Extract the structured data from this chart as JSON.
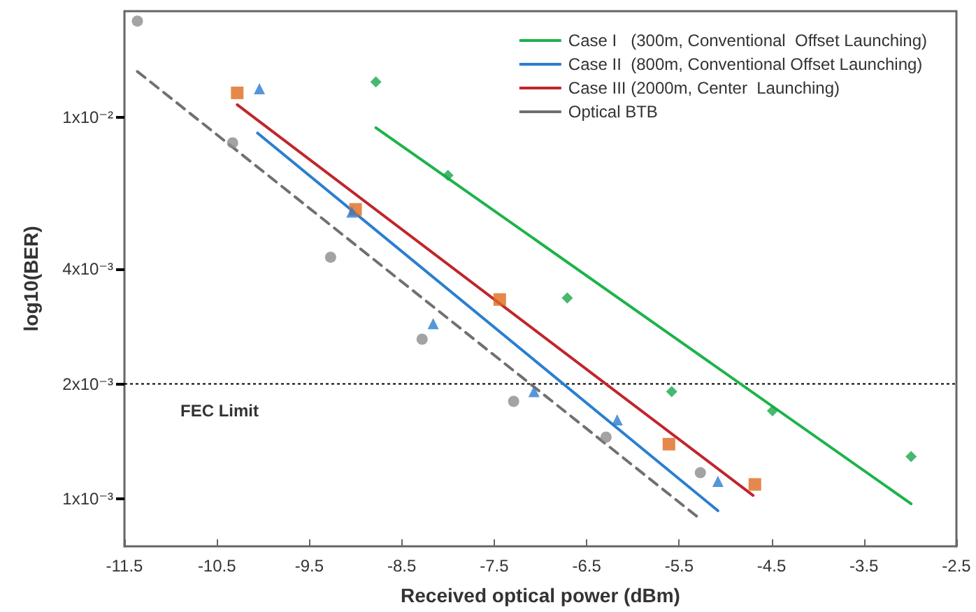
{
  "chart_data": {
    "type": "scatter",
    "xlabel": "Received optical power (dBm)",
    "ylabel": "log10(BER)",
    "xlim": [
      -11.5,
      -2.5
    ],
    "xticks": [
      -11.5,
      -10.5,
      -9.5,
      -8.5,
      -7.5,
      -6.5,
      -5.5,
      -4.5,
      -3.5,
      -2.5
    ],
    "ylim": [
      0.00075,
      0.019
    ],
    "yticks": [
      {
        "value": 0.001,
        "label": "1x10⁻³"
      },
      {
        "value": 0.002,
        "label": "2x10⁻³"
      },
      {
        "value": 0.004,
        "label": "4x10⁻³"
      },
      {
        "value": 0.01,
        "label": "1x10⁻²"
      }
    ],
    "log": "y",
    "grid": false,
    "legend": "top right",
    "ref_lines": [
      {
        "axis": "y",
        "value": 0.002,
        "label": "FEC Limit",
        "color": "#000000",
        "line_style": "dotted"
      }
    ],
    "series": [
      {
        "type": "line",
        "name": "Case I   (300m, Conventional  Offset Launching)",
        "color": "#1db34a",
        "x": [
          -8.78,
          -2.99
        ],
        "values": [
          0.0094,
          0.00097
        ],
        "marker": "none",
        "line_style": "solid"
      },
      {
        "type": "line",
        "name": "Case II  (800m, Conventional Offset Launching)",
        "color": "#2a7fd0",
        "x": [
          -10.06,
          -5.08
        ],
        "values": [
          0.0091,
          0.00093
        ],
        "marker": "none",
        "line_style": "solid"
      },
      {
        "type": "line",
        "name": "Case III (2000m, Center  Launching)",
        "color": "#c0262c",
        "x": [
          -10.28,
          -4.7
        ],
        "values": [
          0.0108,
          0.00102
        ],
        "marker": "none",
        "line_style": "solid"
      },
      {
        "type": "line",
        "name": "Optical BTB",
        "color": "#707070",
        "x": [
          -11.36,
          -5.26
        ],
        "values": [
          0.0132,
          0.00088
        ],
        "marker": "none",
        "line_style": "dashed"
      },
      {
        "color": "#17a84a",
        "x": [
          -8.78,
          -8.0,
          -6.71,
          -5.58,
          -4.49,
          -2.99
        ],
        "values": [
          0.0124,
          0.00705,
          0.00336,
          0.00191,
          0.0017,
          0.00129
        ],
        "marker": "diamond"
      },
      {
        "color": "#2b7cd0",
        "x": [
          -10.04,
          -9.04,
          -8.16,
          -7.07,
          -6.17,
          -5.08
        ],
        "values": [
          0.0119,
          0.00565,
          0.00288,
          0.00191,
          0.00161,
          0.00111
        ],
        "marker": "triangle"
      },
      {
        "color": "#e06a1e",
        "x": [
          -10.28,
          -9.0,
          -7.44,
          -5.61,
          -4.68
        ],
        "values": [
          0.0116,
          0.00574,
          0.00333,
          0.00139,
          0.00109
        ],
        "marker": "square"
      },
      {
        "color": "#8c8c8c",
        "x": [
          -11.36,
          -10.33,
          -9.27,
          -8.28,
          -7.29,
          -6.29,
          -5.27
        ],
        "values": [
          0.0179,
          0.00858,
          0.0043,
          0.00262,
          0.0018,
          0.00145,
          0.00117
        ],
        "marker": "circle"
      }
    ]
  }
}
